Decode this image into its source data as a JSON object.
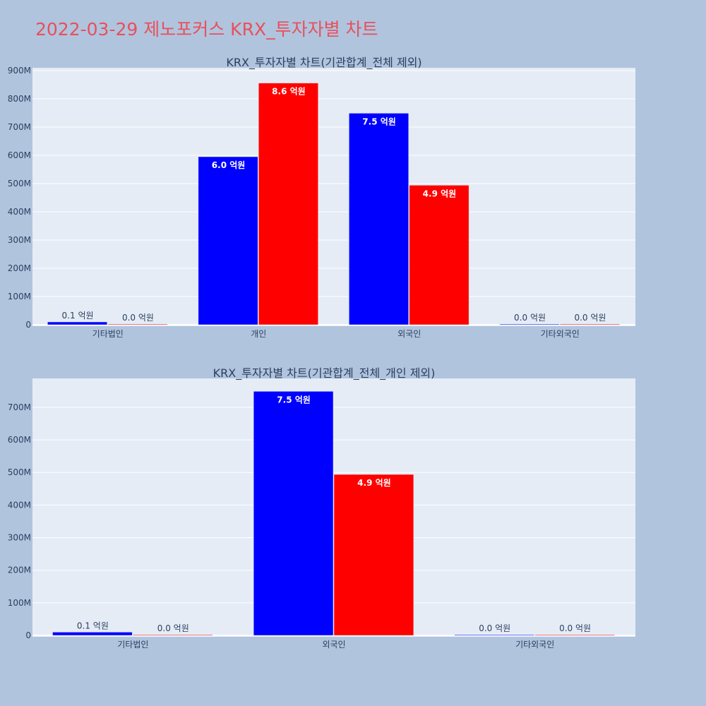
{
  "page": {
    "title": "2022-03-29 제노포커스 KRX_투자자별 차트"
  },
  "colors": {
    "background": "#b0c4de",
    "plot_background": "#e5ecf6",
    "title": "#e8505b",
    "text": "#2a3f5f",
    "series_blue": "#0000ff",
    "series_red": "#ff0000"
  },
  "chart_data": [
    {
      "type": "bar",
      "title": "KRX_투자자별 차트(기관합계_전체 제외)",
      "categories": [
        "기타법인",
        "개인",
        "외국인",
        "기타외국인"
      ],
      "series": [
        {
          "color": "#0000ff",
          "values": [
            10000000,
            595000000,
            749000000,
            1000000
          ],
          "labels": [
            "0.1 억원",
            "6.0 억원",
            "7.5 억원",
            "0.0 억원"
          ]
        },
        {
          "color": "#ff0000",
          "values": [
            2000000,
            856000000,
            494000000,
            1500000
          ],
          "labels": [
            "0.0 억원",
            "8.6 억원",
            "4.9 억원",
            "0.0 억원"
          ]
        }
      ],
      "ylim": [
        0,
        900000000
      ],
      "yticks": [
        0,
        100000000,
        200000000,
        300000000,
        400000000,
        500000000,
        600000000,
        700000000,
        800000000,
        900000000
      ],
      "ytick_labels": [
        "0",
        "100M",
        "200M",
        "300M",
        "400M",
        "500M",
        "600M",
        "700M",
        "800M",
        "900M"
      ],
      "grid": true,
      "xlabel": "",
      "ylabel": ""
    },
    {
      "type": "bar",
      "title": "KRX_투자자별 차트(기관합계_전체_개인 제외)",
      "categories": [
        "기타법인",
        "외국인",
        "기타외국인"
      ],
      "series": [
        {
          "color": "#0000ff",
          "values": [
            10000000,
            749000000,
            1000000
          ],
          "labels": [
            "0.1 억원",
            "7.5 억원",
            "0.0 억원"
          ]
        },
        {
          "color": "#ff0000",
          "values": [
            2000000,
            494000000,
            1500000
          ],
          "labels": [
            "0.0 억원",
            "4.9 억원",
            "0.0 억원"
          ]
        }
      ],
      "ylim": [
        0,
        780000000
      ],
      "yticks": [
        0,
        100000000,
        200000000,
        300000000,
        400000000,
        500000000,
        600000000,
        700000000
      ],
      "ytick_labels": [
        "0",
        "100M",
        "200M",
        "300M",
        "400M",
        "500M",
        "600M",
        "700M"
      ],
      "grid": true,
      "xlabel": "",
      "ylabel": ""
    }
  ]
}
